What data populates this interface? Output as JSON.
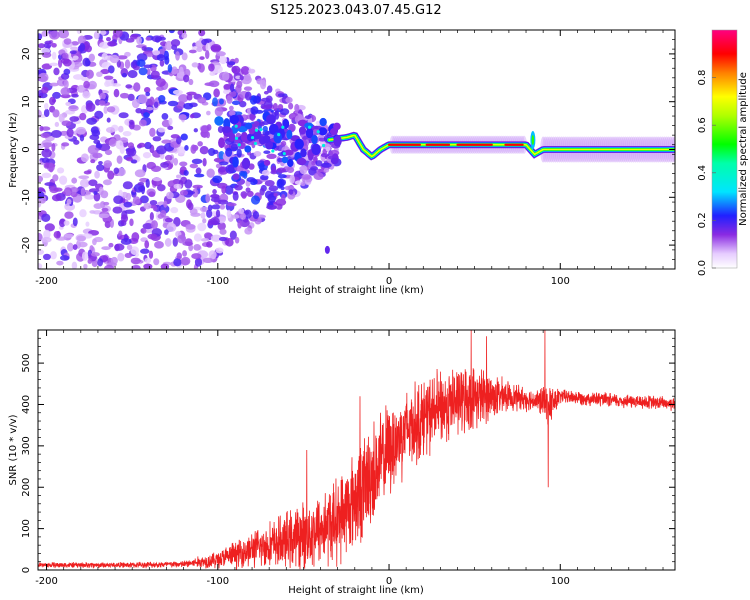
{
  "figure": {
    "title": "S125.2023.043.07.45.G12"
  },
  "colors": {
    "snr_line": "#ee2020",
    "axes": "#000000"
  },
  "chart_data": [
    {
      "type": "heatmap",
      "xlabel": "Height of straight line (km)",
      "ylabel": "Frequency (Hz)",
      "xlim": [
        -205,
        167
      ],
      "ylim": [
        -25,
        25
      ],
      "x_ticks": [
        -200,
        -100,
        0,
        100
      ],
      "y_ticks": [
        -20,
        -10,
        0,
        10,
        20
      ],
      "colorbar": {
        "label": "Normalized spectral amplitude",
        "range": [
          0,
          1
        ],
        "ticks": [
          0.0,
          0.2,
          0.4,
          0.6,
          0.8
        ],
        "colormap": "rainbow (white-purple-blue-cyan-green-yellow-red-magenta)"
      },
      "features": {
        "carrier_track": [
          {
            "x": -35,
            "y": 2
          },
          {
            "x": -25,
            "y": 2.5
          },
          {
            "x": -20,
            "y": 3
          },
          {
            "x": -15,
            "y": 0
          },
          {
            "x": -10,
            "y": -1.5
          },
          {
            "x": -5,
            "y": 0
          },
          {
            "x": 0,
            "y": 1
          },
          {
            "x": 80,
            "y": 1
          },
          {
            "x": 85,
            "y": -1
          },
          {
            "x": 90,
            "y": 0
          },
          {
            "x": 167,
            "y": 0
          }
        ],
        "noise_region_x": [
          -205,
          -30
        ]
      }
    },
    {
      "type": "line",
      "xlabel": "Height of straight line (km)",
      "ylabel": "SNR (10 * v/v)",
      "xlim": [
        -205,
        167
      ],
      "ylim": [
        0,
        580
      ],
      "x_ticks": [
        -200,
        -100,
        0,
        100
      ],
      "y_ticks": [
        0,
        100,
        200,
        300,
        400,
        500
      ],
      "series": [
        {
          "envelope": [
            {
              "x": -205,
              "mean": 12,
              "spread": 8
            },
            {
              "x": -150,
              "mean": 12,
              "spread": 8
            },
            {
              "x": -120,
              "mean": 14,
              "spread": 10
            },
            {
              "x": -100,
              "mean": 25,
              "spread": 25
            },
            {
              "x": -80,
              "mean": 50,
              "spread": 50
            },
            {
              "x": -60,
              "mean": 70,
              "spread": 80
            },
            {
              "x": -45,
              "mean": 90,
              "spread": 100
            },
            {
              "x": -30,
              "mean": 120,
              "spread": 120
            },
            {
              "x": -20,
              "mean": 170,
              "spread": 140
            },
            {
              "x": -10,
              "mean": 230,
              "spread": 150
            },
            {
              "x": 0,
              "mean": 290,
              "spread": 130
            },
            {
              "x": 10,
              "mean": 340,
              "spread": 120
            },
            {
              "x": 25,
              "mean": 380,
              "spread": 110
            },
            {
              "x": 40,
              "mean": 410,
              "spread": 100
            },
            {
              "x": 55,
              "mean": 420,
              "spread": 80
            },
            {
              "x": 70,
              "mean": 420,
              "spread": 40
            },
            {
              "x": 85,
              "mean": 410,
              "spread": 30
            },
            {
              "x": 95,
              "mean": 400,
              "spread": 60
            },
            {
              "x": 100,
              "mean": 420,
              "spread": 20
            },
            {
              "x": 130,
              "mean": 410,
              "spread": 20
            },
            {
              "x": 167,
              "mean": 402,
              "spread": 20
            }
          ],
          "spikes": [
            {
              "x": 91,
              "y": 580
            },
            {
              "x": 93,
              "y": 200
            },
            {
              "x": 48,
              "y": 580
            },
            {
              "x": 57,
              "y": 565
            },
            {
              "x": -48,
              "y": 290
            },
            {
              "x": -17,
              "y": 420
            }
          ]
        }
      ]
    }
  ]
}
